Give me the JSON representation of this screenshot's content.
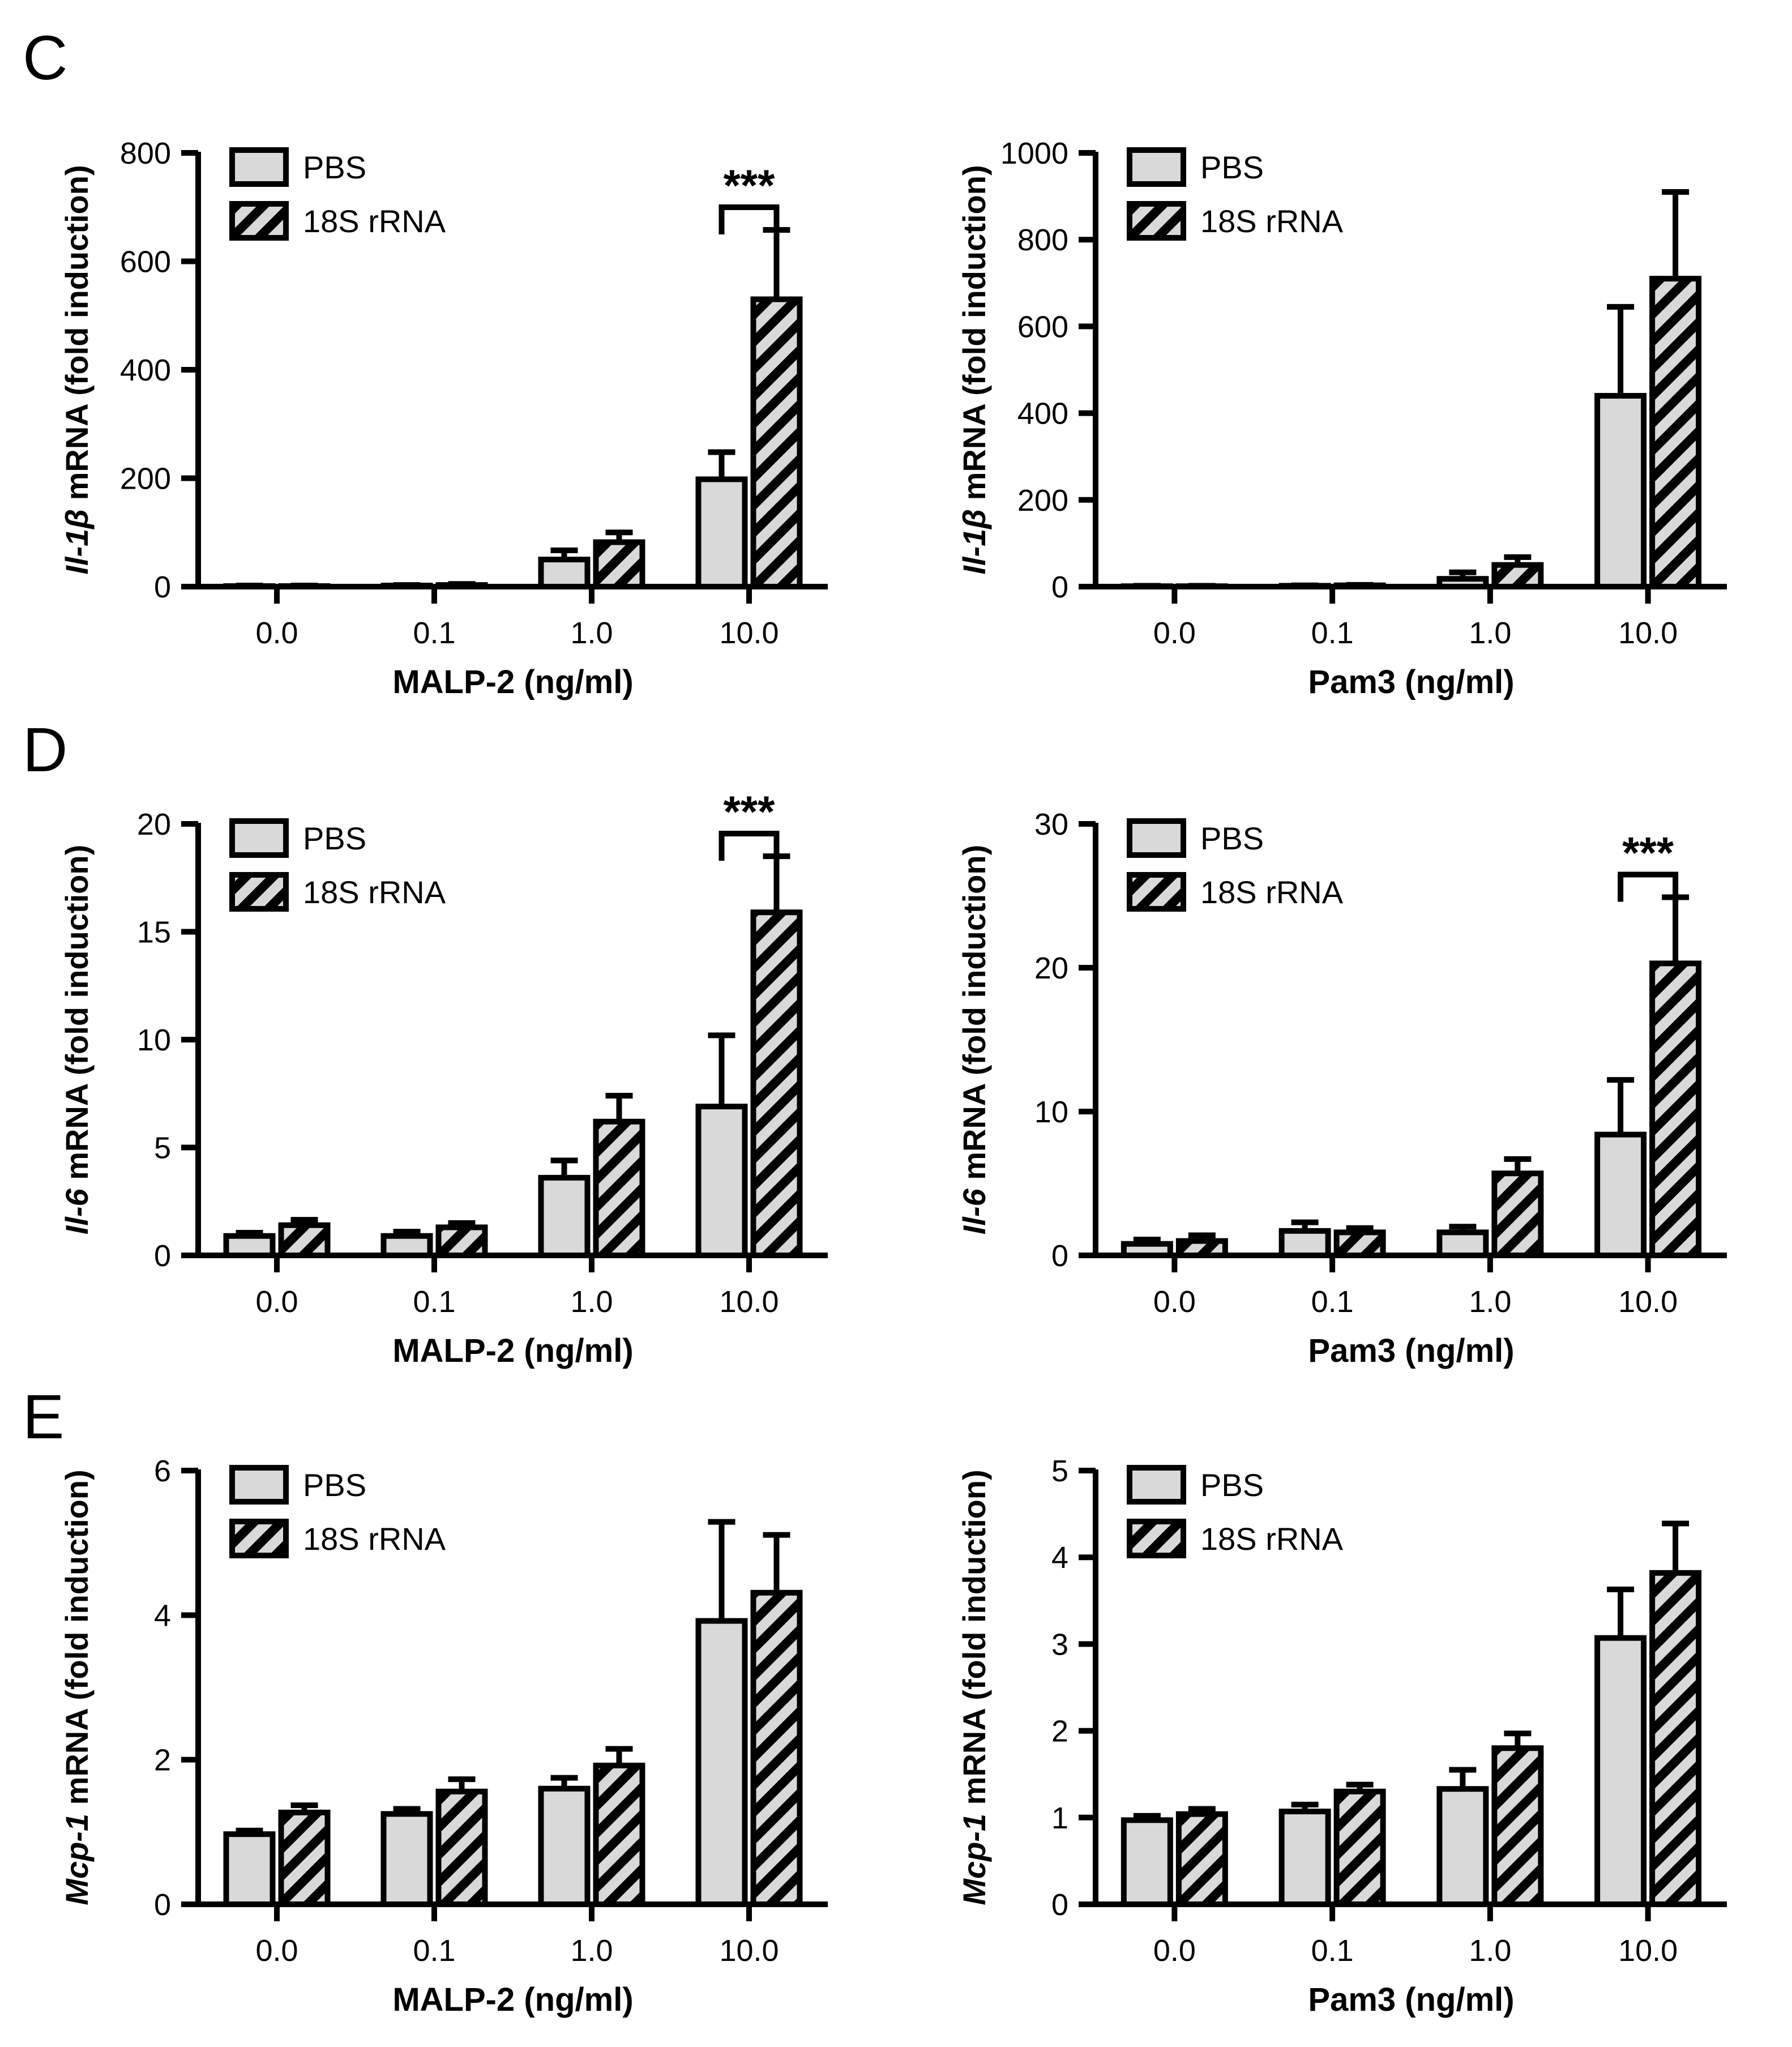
{
  "panel_labels": [
    "C",
    "D",
    "E"
  ],
  "colors": {
    "pbs_fill": "#d9d9d9",
    "stroke": "#000000",
    "hatch_bg": "#d9d9d9"
  },
  "chart_data": [
    {
      "type": "bar",
      "row": 0,
      "col": 0,
      "panel_label": "C",
      "categories": [
        "0.0",
        "0.1",
        "1.0",
        "10.0"
      ],
      "xlabel": "MALP-2 (ng/ml)",
      "ylabel_italic": "Il-1β",
      "ylabel_rest": " mRNA (fold induction)",
      "ylim": [
        0,
        800
      ],
      "yticks": [
        "0",
        "200",
        "400",
        "600",
        "800"
      ],
      "series": [
        {
          "name": "PBS",
          "values": [
            1,
            2,
            50,
            198
          ],
          "errors": [
            1,
            1,
            17,
            50
          ]
        },
        {
          "name": "18S rRNA",
          "values": [
            1,
            3,
            82,
            530
          ],
          "errors": [
            1,
            2,
            18,
            128
          ]
        }
      ],
      "significance": [
        {
          "category_index": 3,
          "label": "***"
        }
      ]
    },
    {
      "type": "bar",
      "row": 0,
      "col": 1,
      "categories": [
        "0.0",
        "0.1",
        "1.0",
        "10.0"
      ],
      "xlabel": "Pam3 (ng/ml)",
      "ylabel_italic": "Il-1β",
      "ylabel_rest": " mRNA (fold induction)",
      "ylim": [
        0,
        1000
      ],
      "yticks": [
        "0",
        "200",
        "400",
        "600",
        "800",
        "1000"
      ],
      "series": [
        {
          "name": "PBS",
          "values": [
            1,
            2,
            18,
            440
          ],
          "errors": [
            1,
            1,
            15,
            205
          ]
        },
        {
          "name": "18S rRNA",
          "values": [
            1,
            3,
            50,
            710
          ],
          "errors": [
            1,
            1,
            18,
            200
          ]
        }
      ],
      "significance": []
    },
    {
      "type": "bar",
      "row": 1,
      "col": 0,
      "panel_label": "D",
      "categories": [
        "0.0",
        "0.1",
        "1.0",
        "10.0"
      ],
      "xlabel": "MALP-2 (ng/ml)",
      "ylabel_italic": "Il-6",
      "ylabel_rest": " mRNA (fold induction)",
      "ylim": [
        0,
        20
      ],
      "yticks": [
        "0",
        "5",
        "10",
        "15",
        "20"
      ],
      "series": [
        {
          "name": "PBS",
          "values": [
            0.9,
            0.9,
            3.6,
            6.9
          ],
          "errors": [
            0.15,
            0.2,
            0.8,
            3.3
          ]
        },
        {
          "name": "18S rRNA",
          "values": [
            1.4,
            1.3,
            6.2,
            15.9
          ],
          "errors": [
            0.25,
            0.2,
            1.2,
            2.6
          ]
        }
      ],
      "significance": [
        {
          "category_index": 3,
          "label": "***"
        }
      ]
    },
    {
      "type": "bar",
      "row": 1,
      "col": 1,
      "categories": [
        "0.0",
        "0.1",
        "1.0",
        "10.0"
      ],
      "xlabel": "Pam3 (ng/ml)",
      "ylabel_italic": "Il-6",
      "ylabel_rest": " mRNA (fold induction)",
      "ylim": [
        0,
        30
      ],
      "yticks": [
        "0",
        "10",
        "20",
        "30"
      ],
      "series": [
        {
          "name": "PBS",
          "values": [
            0.8,
            1.7,
            1.6,
            8.4
          ],
          "errors": [
            0.3,
            0.6,
            0.4,
            3.8
          ]
        },
        {
          "name": "18S rRNA",
          "values": [
            1.0,
            1.6,
            5.7,
            20.3
          ],
          "errors": [
            0.4,
            0.3,
            1.0,
            4.6
          ]
        }
      ],
      "significance": [
        {
          "category_index": 3,
          "label": "***"
        }
      ]
    },
    {
      "type": "bar",
      "row": 2,
      "col": 0,
      "panel_label": "E",
      "categories": [
        "0.0",
        "0.1",
        "1.0",
        "10.0"
      ],
      "xlabel": "MALP-2 (ng/ml)",
      "ylabel_italic": "Mcp-1",
      "ylabel_rest": " mRNA (fold induction)",
      "ylim": [
        0,
        6
      ],
      "yticks": [
        "0",
        "2",
        "4",
        "6"
      ],
      "series": [
        {
          "name": "PBS",
          "values": [
            0.97,
            1.25,
            1.6,
            3.92
          ],
          "errors": [
            0.05,
            0.07,
            0.15,
            1.37
          ]
        },
        {
          "name": "18S rRNA",
          "values": [
            1.27,
            1.56,
            1.92,
            4.31
          ],
          "errors": [
            0.1,
            0.17,
            0.23,
            0.8
          ]
        }
      ],
      "significance": []
    },
    {
      "type": "bar",
      "row": 2,
      "col": 1,
      "categories": [
        "0.0",
        "0.1",
        "1.0",
        "10.0"
      ],
      "xlabel": "Pam3 (ng/ml)",
      "ylabel_italic": "Mcp-1",
      "ylabel_rest": " mRNA (fold induction)",
      "ylim": [
        0,
        5
      ],
      "yticks": [
        "0",
        "1",
        "2",
        "3",
        "4",
        "5"
      ],
      "series": [
        {
          "name": "PBS",
          "values": [
            0.97,
            1.07,
            1.33,
            3.07
          ],
          "errors": [
            0.05,
            0.08,
            0.22,
            0.56
          ]
        },
        {
          "name": "18S rRNA",
          "values": [
            1.04,
            1.3,
            1.8,
            3.82
          ],
          "errors": [
            0.06,
            0.08,
            0.17,
            0.57
          ]
        }
      ],
      "significance": []
    }
  ]
}
